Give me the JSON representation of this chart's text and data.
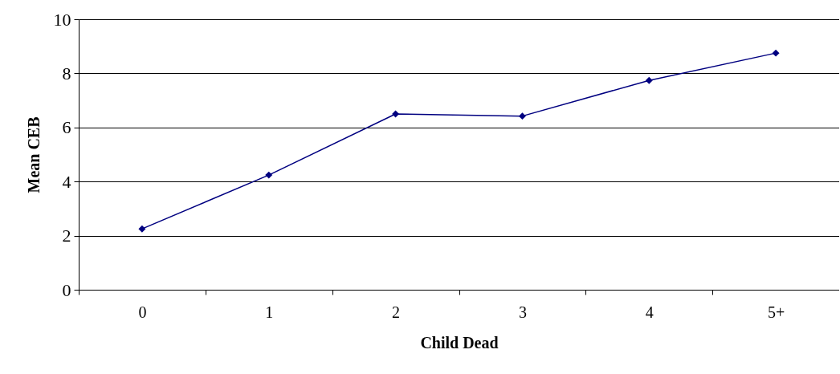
{
  "chart_data": {
    "type": "line",
    "xlabel": "Child Dead",
    "ylabel": "Mean CEB",
    "categories": [
      "0",
      "1",
      "2",
      "3",
      "4",
      "5+"
    ],
    "series": [
      {
        "color": "#000080",
        "values": [
          2.25,
          4.24,
          6.5,
          6.42,
          7.74,
          8.75
        ]
      }
    ],
    "ylim": [
      0,
      10
    ],
    "yticks": [
      0,
      2,
      4,
      6,
      8,
      10
    ],
    "grid": "y",
    "marker": "diamond",
    "line_style": "solid",
    "legend": false
  }
}
